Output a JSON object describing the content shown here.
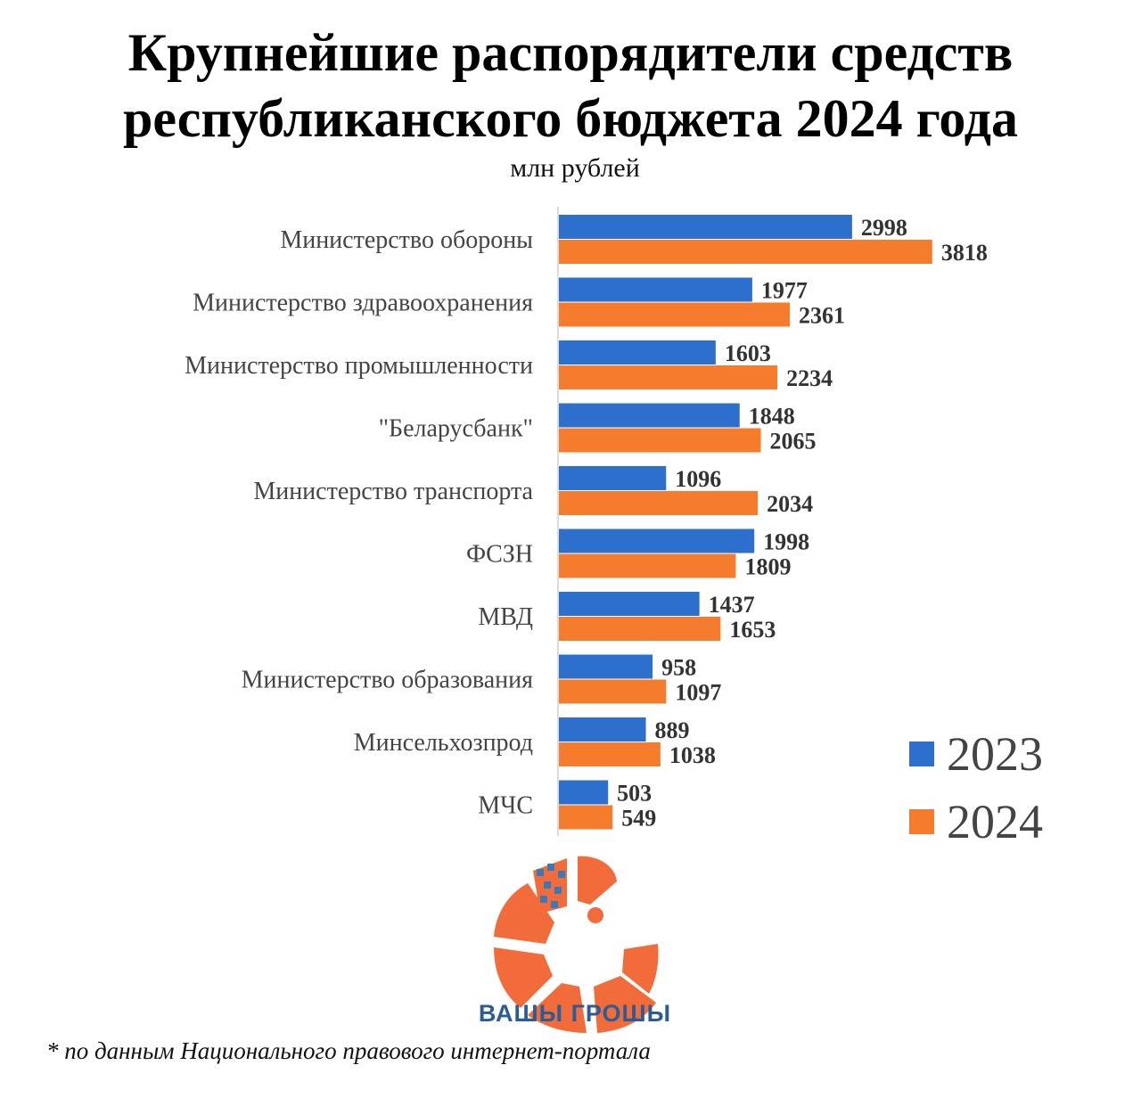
{
  "title_line1": "Крупнейшие распорядители средств",
  "title_line2": "республиканского бюджета 2024 года",
  "unit": "млн рублей",
  "chart_data": {
    "type": "bar",
    "orientation": "horizontal",
    "title": "Крупнейшие распорядители средств республиканского бюджета 2024 года",
    "unit": "млн рублей",
    "categories": [
      "Министерство обороны",
      "Министерство здравоохранения",
      "Министерство промышленности",
      "\"Беларусбанк\"",
      "Министерство транспорта",
      "ФСЗН",
      "МВД",
      "Министерство образования",
      "Минсельхозпрод",
      "МЧС"
    ],
    "series": [
      {
        "name": "2023",
        "color": "#2c6fcc",
        "values": [
          2998,
          1977,
          1603,
          1848,
          1096,
          1998,
          1437,
          958,
          889,
          503
        ]
      },
      {
        "name": "2024",
        "color": "#f47c2c",
        "values": [
          3818,
          2361,
          2234,
          2065,
          2034,
          1809,
          1653,
          1097,
          1038,
          549
        ]
      }
    ],
    "legend_position": "bottom-right",
    "grid": false,
    "axis_line": true
  },
  "legend": {
    "items": [
      {
        "label": "2023",
        "color": "#2c6fcc"
      },
      {
        "label": "2024",
        "color": "#f47c2c"
      }
    ]
  },
  "logo": {
    "text": "ВАШЫ ГРОШЫ",
    "icon": "orange-circle-segments-logo-icon"
  },
  "footnote": "* по данным Национального правового интернет-портала"
}
